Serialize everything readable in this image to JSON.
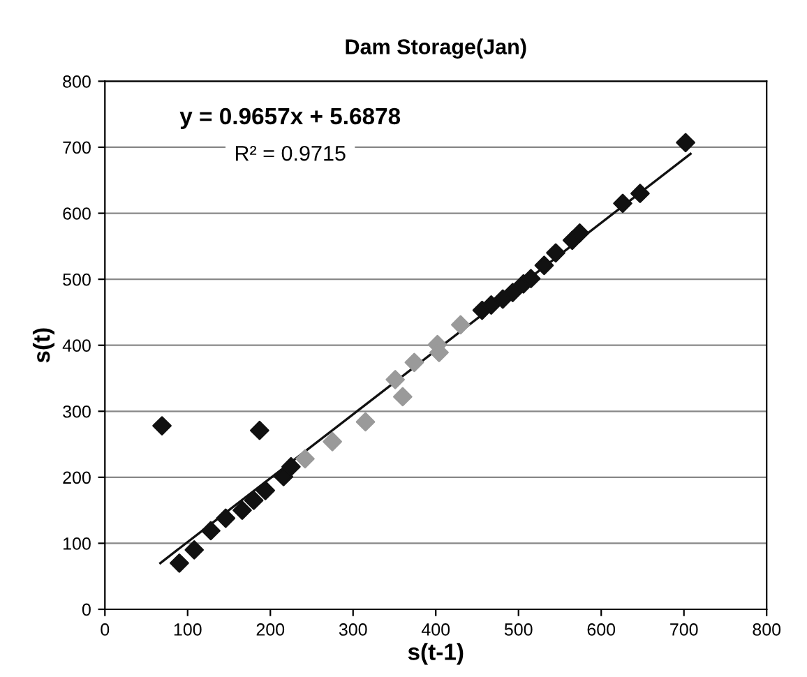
{
  "chart_data": {
    "type": "scatter",
    "title": "Dam Storage(Jan)",
    "xlabel": "s(t-1)",
    "ylabel": "s(t)",
    "xlim": [
      0,
      800
    ],
    "xticks": [
      0,
      100,
      200,
      300,
      400,
      500,
      600,
      700,
      800
    ],
    "ylim": [
      0,
      800
    ],
    "yticks": [
      0,
      100,
      200,
      300,
      400,
      500,
      600,
      700,
      800
    ],
    "grid": "y",
    "series": [
      {
        "marker": "diamond",
        "color": "#111111",
        "x": [
          69,
          187,
          90,
          108,
          128,
          146,
          166,
          180,
          194,
          216,
          225,
          456,
          467,
          481,
          493,
          506,
          515,
          531,
          545,
          565,
          574,
          626,
          647,
          702
        ],
        "values": [
          278,
          271,
          70,
          90,
          119,
          138,
          150,
          165,
          180,
          201,
          216,
          453,
          461,
          470,
          480,
          493,
          501,
          521,
          540,
          559,
          570,
          615,
          630,
          707
        ]
      },
      {
        "marker": "diamond",
        "color": "#9a9a9a",
        "x": [
          242,
          275,
          315,
          351,
          360,
          374,
          402,
          404,
          430
        ],
        "values": [
          228,
          254,
          284,
          348,
          322,
          374,
          401,
          389,
          431
        ]
      },
      {
        "type": "line",
        "color": "#111111",
        "x": [
          67,
          708
        ],
        "values": [
          70,
          690
        ]
      }
    ],
    "annotations": [
      "y = 0.9657x + 5.6878",
      "R² = 0.9715"
    ]
  }
}
